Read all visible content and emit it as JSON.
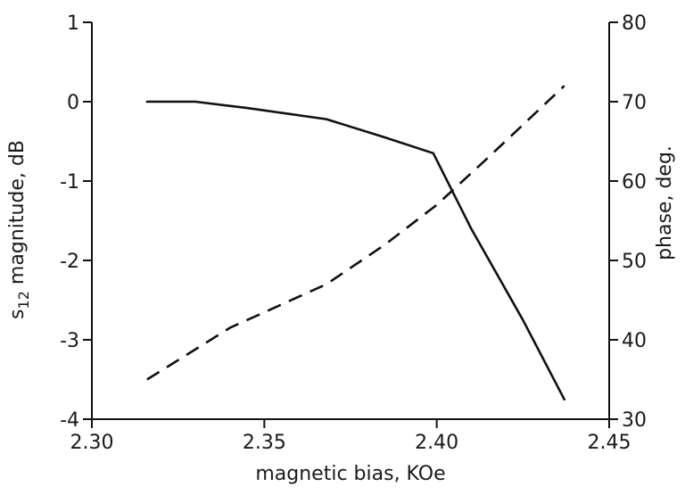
{
  "chart_data": {
    "type": "line",
    "title": "",
    "xlabel": "magnetic bias, KOe",
    "ylabel_left": {
      "main": "s",
      "sub": "12",
      "rest": " magnitude, dB"
    },
    "ylabel_right": "phase, deg.",
    "xlim": [
      2.3,
      2.45
    ],
    "ylim_left": [
      -4,
      1
    ],
    "ylim_right": [
      30,
      80
    ],
    "x_ticks": [
      "2.30",
      "2.35",
      "2.40",
      "2.45"
    ],
    "y_left_ticks": [
      "1",
      "0",
      "-1",
      "-2",
      "-3",
      "-4"
    ],
    "y_right_ticks": [
      "80",
      "70",
      "60",
      "50",
      "40",
      "30"
    ],
    "grid": false,
    "legend": "none",
    "series": [
      {
        "axis": "left",
        "style": "solid",
        "color": "#111111",
        "x": [
          2.316,
          2.33,
          2.345,
          2.368,
          2.385,
          2.399,
          2.41,
          2.425,
          2.437
        ],
        "y": [
          0.0,
          0.0,
          -0.08,
          -0.22,
          -0.45,
          -0.65,
          -1.6,
          -2.75,
          -3.75
        ]
      },
      {
        "axis": "right",
        "style": "dashed",
        "color": "#111111",
        "x": [
          2.316,
          2.34,
          2.368,
          2.385,
          2.4,
          2.415,
          2.437
        ],
        "y": [
          35,
          41.5,
          47,
          52,
          57,
          63,
          72
        ]
      }
    ]
  }
}
